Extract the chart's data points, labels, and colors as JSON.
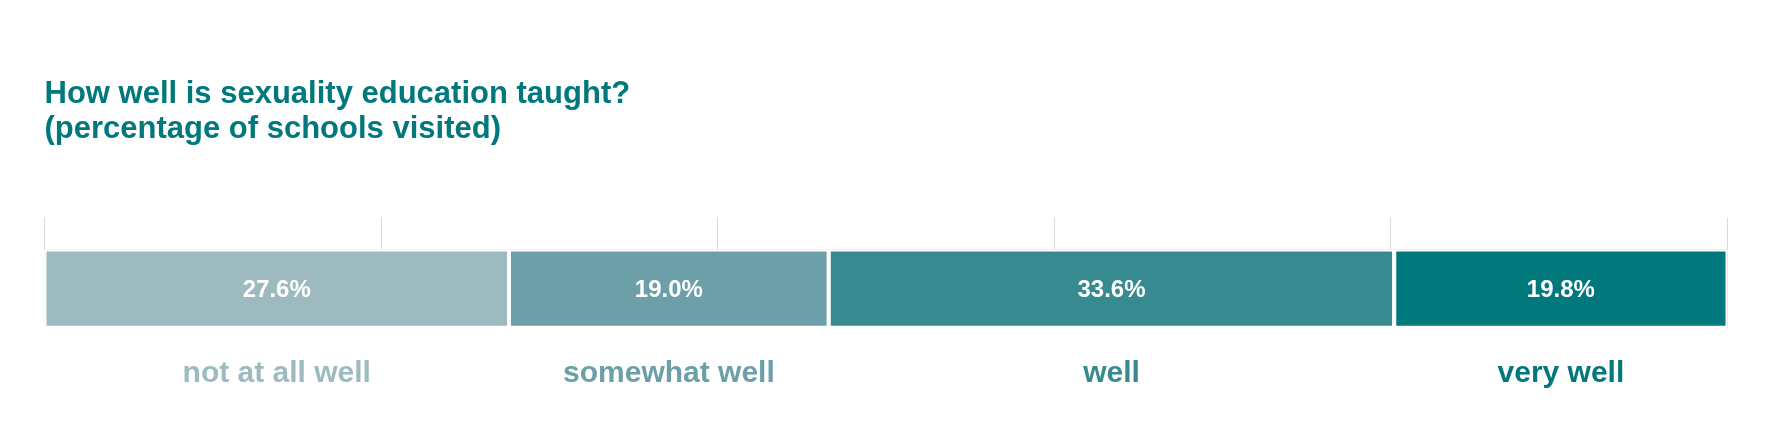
{
  "chart_data": {
    "type": "bar",
    "orientation": "horizontal",
    "stacked": true,
    "title": "How well is sexuality education taught?\n(percentage of schools visited)",
    "categories": [
      null
    ],
    "series": [
      {
        "name": "not at all well",
        "color": "#9dbac1",
        "values": [
          27.6
        ],
        "value_labels": [
          "27.6%"
        ]
      },
      {
        "name": "somewhat well",
        "color": "#6c9fa8",
        "values": [
          19.0
        ],
        "value_labels": [
          "19.0%"
        ]
      },
      {
        "name": "well",
        "color": "#378a8f",
        "values": [
          33.6
        ],
        "value_labels": [
          "33.6%"
        ]
      },
      {
        "name": "very well",
        "color": "#00787c",
        "values": [
          19.8
        ],
        "value_labels": [
          "19.8%"
        ]
      }
    ],
    "xlim": [
      0,
      100
    ]
  }
}
